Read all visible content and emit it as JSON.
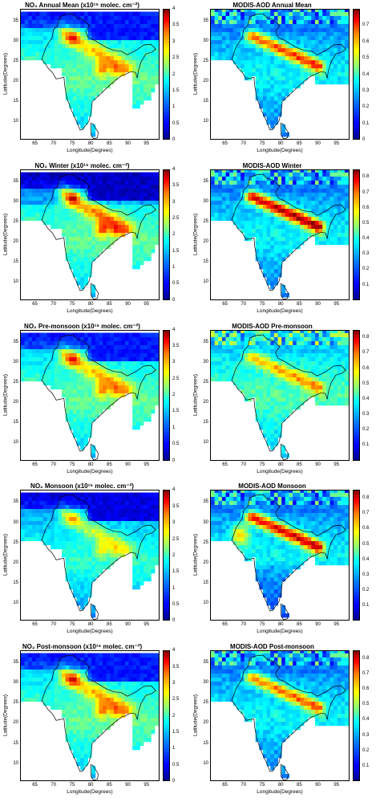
{
  "labels": {
    "latitude": "Latitude(Degrees)",
    "longitude": "Longitude(Degrees)",
    "lat_ticks": [
      "35",
      "30",
      "25",
      "20",
      "15",
      "10"
    ],
    "lon_ticks": [
      "65",
      "70",
      "75",
      "80",
      "85",
      "90",
      "95"
    ]
  },
  "colormap": "jet",
  "panels": [
    {
      "id": "no2-annual",
      "title": "NO₂ Annual Mean (x10¹⁵ molec. cm⁻²)",
      "cbar_ticks": [
        "4",
        "3.5",
        "3",
        "2.5",
        "2",
        "1.5",
        "1",
        "0.5",
        "0"
      ],
      "cbar_range": [
        0,
        4
      ]
    },
    {
      "id": "aod-annual",
      "title": "MODIS-AOD Annual Mean",
      "cbar_ticks": [
        "0.7",
        "0.6",
        "0.5",
        "0.4",
        "0.3",
        "0.2",
        "0.1",
        "0"
      ],
      "cbar_range": [
        0,
        0.8
      ]
    },
    {
      "id": "no2-winter",
      "title": "NO₂ Winter (x10¹⁵ molec. cm⁻²)",
      "cbar_ticks": [
        "4",
        "3.5",
        "3",
        "2.5",
        "2",
        "1.5",
        "1",
        "0.5",
        "0"
      ],
      "cbar_range": [
        0,
        4
      ]
    },
    {
      "id": "aod-winter",
      "title": "MODIS-AOD Winter",
      "cbar_ticks": [
        "0.8",
        "0.7",
        "0.6",
        "0.5",
        "0.4",
        "0.3",
        "0.2",
        "0.1"
      ],
      "cbar_range": [
        0,
        0.85
      ]
    },
    {
      "id": "no2-premonsoon",
      "title": "NO₂ Pre-monsoon (x10¹⁵ molec. cm⁻²)",
      "cbar_ticks": [
        "4",
        "3.5",
        "3",
        "2.5",
        "2",
        "1.5",
        "1",
        "0.5",
        "0"
      ],
      "cbar_range": [
        0,
        4
      ]
    },
    {
      "id": "aod-premonsoon",
      "title": "MODIS-AOD Pre-monsoon",
      "cbar_ticks": [
        "0.8",
        "0.7",
        "0.6",
        "0.5",
        "0.4",
        "0.3",
        "0.2",
        "0.1"
      ],
      "cbar_range": [
        0,
        0.85
      ]
    },
    {
      "id": "no2-monsoon",
      "title": "NO₂ Monsoon (x10¹⁵ molec. cm⁻²)",
      "cbar_ticks": [
        "4",
        "3.5",
        "3",
        "2.5",
        "2",
        "1.5",
        "1",
        "0.5",
        "0"
      ],
      "cbar_range": [
        0,
        4
      ]
    },
    {
      "id": "aod-monsoon",
      "title": "MODIS-AOD Monsoon",
      "cbar_ticks": [
        "0.8",
        "0.7",
        "0.6",
        "0.5",
        "0.4",
        "0.3",
        "0.2",
        "0.1"
      ],
      "cbar_range": [
        0,
        0.85
      ]
    },
    {
      "id": "no2-postmonsoon",
      "title": "NO₂ Post-monsoon (x10¹⁵ molec. cm⁻²)",
      "cbar_ticks": [
        "4",
        "3.5",
        "3",
        "2.5",
        "2",
        "1.5",
        "1",
        "0.5",
        "0"
      ],
      "cbar_range": [
        0,
        4
      ]
    },
    {
      "id": "aod-postmonsoon",
      "title": "MODIS-AOD Post-monsoon",
      "cbar_ticks": [
        "0.8",
        "0.7",
        "0.6",
        "0.5",
        "0.4",
        "0.3",
        "0.2",
        "0.1"
      ],
      "cbar_range": [
        0,
        0.85
      ]
    }
  ]
}
